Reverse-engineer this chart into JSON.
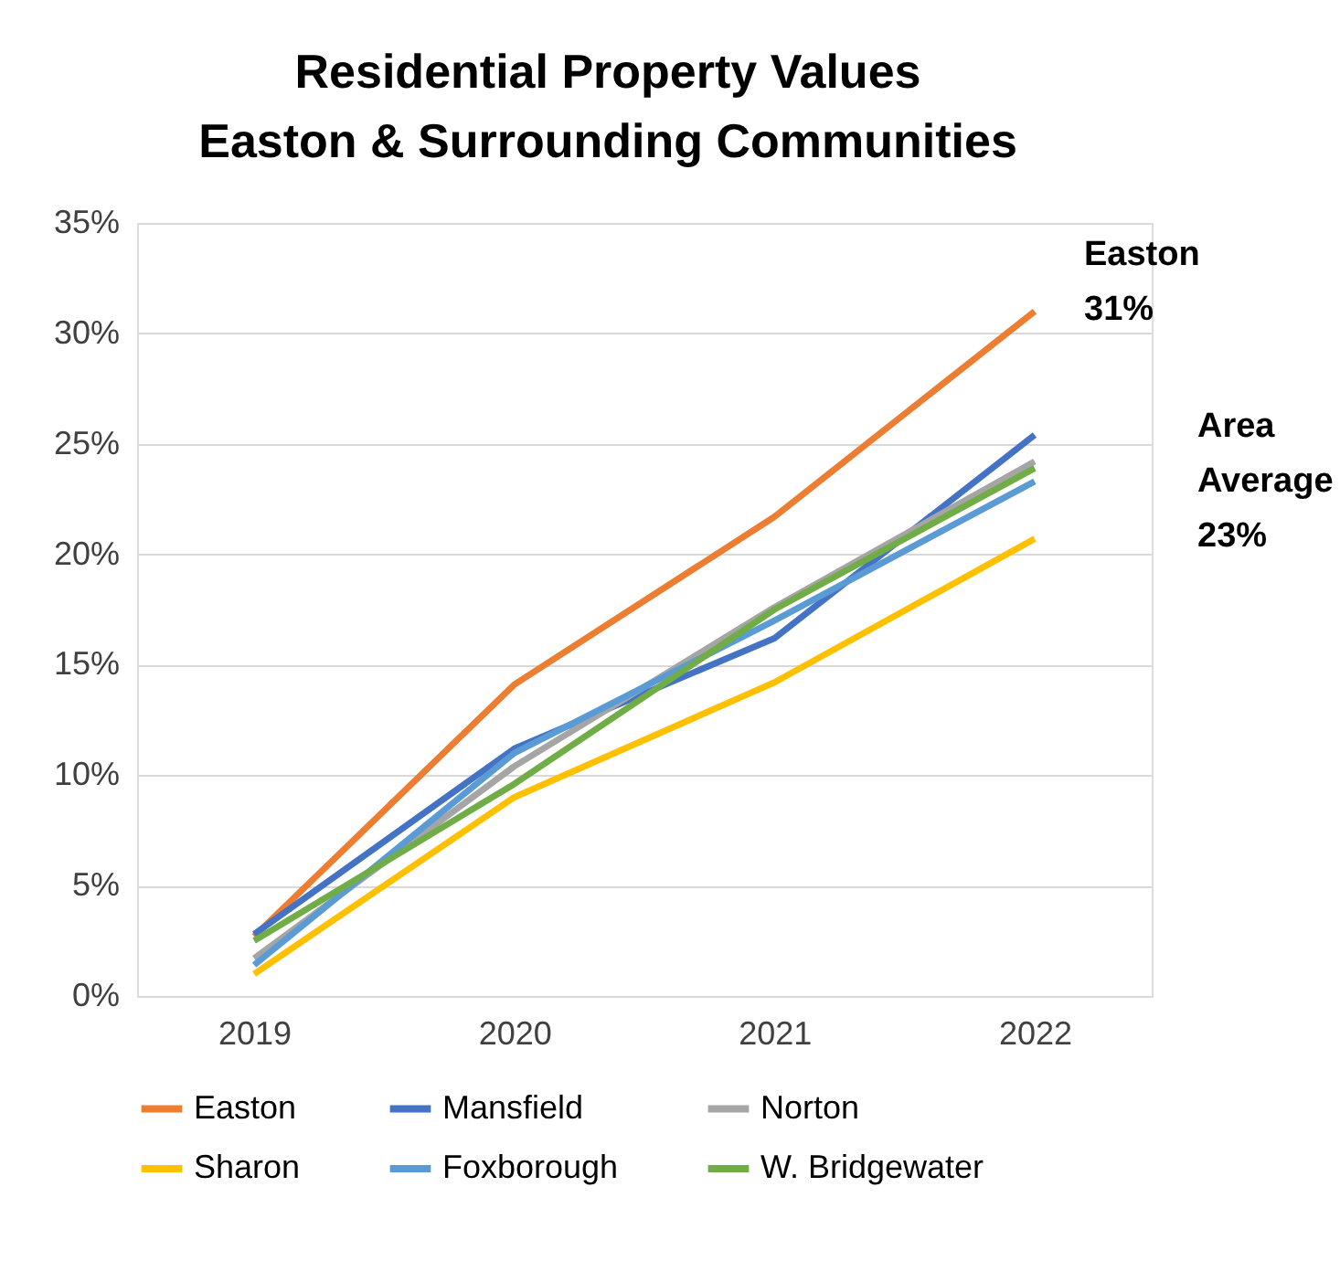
{
  "chart_data": {
    "type": "line",
    "title": "Residential Property Values\nEaston & Surrounding Communities",
    "categories": [
      "2019",
      "2020",
      "2021",
      "2022"
    ],
    "series": [
      {
        "name": "Easton",
        "color": "#ed7d31",
        "values": [
          2.7,
          14.1,
          21.7,
          31.0
        ]
      },
      {
        "name": "Mansfield",
        "color": "#4472c4",
        "values": [
          2.8,
          11.2,
          16.2,
          25.4
        ]
      },
      {
        "name": "Norton",
        "color": "#a5a5a5",
        "values": [
          1.7,
          10.4,
          17.6,
          24.2
        ]
      },
      {
        "name": "Sharon",
        "color": "#ffc000",
        "values": [
          1.0,
          9.0,
          14.2,
          20.7
        ]
      },
      {
        "name": "Foxborough",
        "color": "#5b9bd5",
        "values": [
          1.4,
          11.0,
          17.0,
          23.3
        ]
      },
      {
        "name": "W. Bridgewater",
        "color": "#70ad47",
        "values": [
          2.5,
          9.6,
          17.5,
          23.9
        ]
      }
    ],
    "ylim": [
      0,
      35
    ],
    "yticks": [
      {
        "value": 0,
        "label": "0%"
      },
      {
        "value": 5,
        "label": "5%"
      },
      {
        "value": 10,
        "label": "10%"
      },
      {
        "value": 15,
        "label": "15%"
      },
      {
        "value": 20,
        "label": "20%"
      },
      {
        "value": 25,
        "label": "25%"
      },
      {
        "value": 30,
        "label": "30%"
      },
      {
        "value": 35,
        "label": "35%"
      }
    ],
    "grid": "y",
    "legend": "bottom",
    "marker": "none",
    "line_style": "solid",
    "annotations": [
      "Easton\n31%",
      "Area\nAverage\n23%"
    ]
  }
}
